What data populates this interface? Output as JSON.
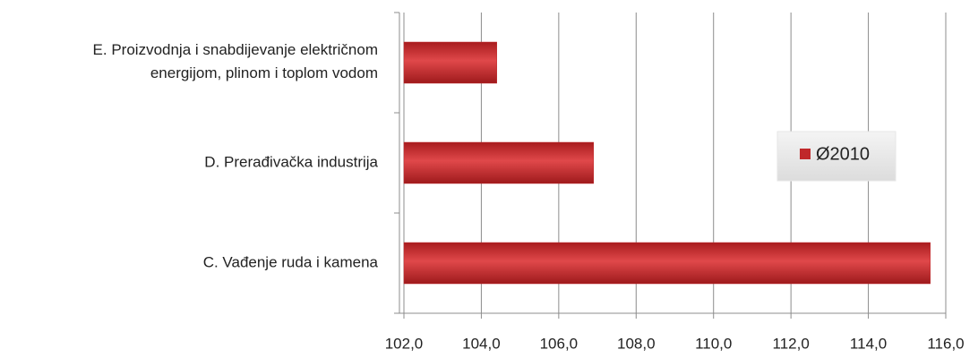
{
  "chart_data": {
    "type": "bar",
    "orientation": "horizontal",
    "categories": [
      "E. Proizvodnja i snabdijevanje električnom\nenergijom, plinom i toplom vodom",
      "D. Prerađivačka industrija",
      "C. Vađenje ruda i kamena"
    ],
    "series": [
      {
        "name": "Ø2010",
        "color": "#c0282a",
        "values": [
          104.4,
          106.9,
          115.6
        ]
      }
    ],
    "xlim": [
      102,
      116
    ],
    "xticks": [
      {
        "value": 102,
        "label": "102,0"
      },
      {
        "value": 104,
        "label": "104,0"
      },
      {
        "value": 106,
        "label": "106,0"
      },
      {
        "value": 108,
        "label": "108,0"
      },
      {
        "value": 110,
        "label": "110,0"
      },
      {
        "value": 112,
        "label": "112,0"
      },
      {
        "value": 114,
        "label": "114,0"
      },
      {
        "value": 116,
        "label": "116,0"
      }
    ],
    "grid": true,
    "legend": "right"
  }
}
